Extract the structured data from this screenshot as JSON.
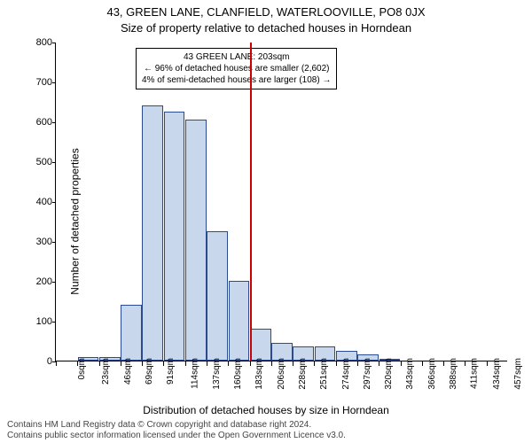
{
  "title_line1": "43, GREEN LANE, CLANFIELD, WATERLOOVILLE, PO8 0JX",
  "title_line2": "Size of property relative to detached houses in Horndean",
  "ylabel": "Number of detached properties",
  "xlabel": "Distribution of detached houses by size in Horndean",
  "license_line1": "Contains HM Land Registry data © Crown copyright and database right 2024.",
  "license_line2": "Contains public sector information licensed under the Open Government Licence v3.0.",
  "chart": {
    "type": "histogram",
    "background_color": "#ffffff",
    "bar_fill": "#c9d7ed",
    "bar_border": "#2a4c8f",
    "refline_color": "#cc0000",
    "ylim": [
      0,
      800
    ],
    "ytick_step": 100,
    "x_categories": [
      "0sqm",
      "23sqm",
      "46sqm",
      "69sqm",
      "91sqm",
      "114sqm",
      "137sqm",
      "160sqm",
      "183sqm",
      "206sqm",
      "228sqm",
      "251sqm",
      "274sqm",
      "297sqm",
      "320sqm",
      "343sqm",
      "366sqm",
      "388sqm",
      "411sqm",
      "434sqm",
      "457sqm"
    ],
    "values": [
      0,
      10,
      10,
      140,
      640,
      625,
      605,
      325,
      200,
      80,
      45,
      35,
      35,
      25,
      15,
      5,
      0,
      0,
      0,
      0,
      0
    ],
    "bar_width_ratio": 0.98,
    "refline_x_category_index": 9,
    "callout": {
      "line1": "43 GREEN LANE: 203sqm",
      "line2": "← 96% of detached houses are smaller (2,602)",
      "line3": "4% of semi-detached houses are larger (108) →"
    },
    "title_fontsize": 13,
    "label_fontsize": 12,
    "tick_fontsize": 11
  }
}
